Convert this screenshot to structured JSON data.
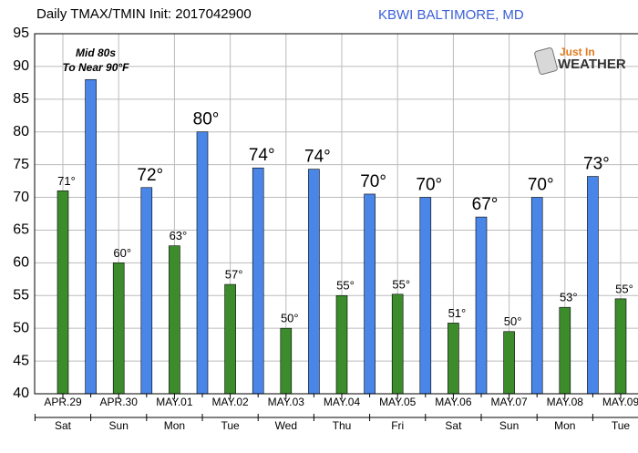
{
  "chart_data": {
    "type": "bar",
    "title": "Daily TMAX/TMIN Init: 2017042900",
    "station": "KBWI BALTIMORE, MD",
    "annotation": [
      "Mid 80s",
      "To Near 90°F"
    ],
    "logo": [
      "Just In",
      "WEATHER"
    ],
    "categories": [
      "APR.29",
      "APR.30",
      "MAY.01",
      "MAY.02",
      "MAY.03",
      "MAY.04",
      "MAY.05",
      "MAY.06",
      "MAY.07",
      "MAY.08",
      "MAY.09"
    ],
    "weekdays": [
      "Sat",
      "Sun",
      "Mon",
      "Tue",
      "Wed",
      "Thu",
      "Fri",
      "Sat",
      "Sun",
      "Mon",
      "Tue"
    ],
    "series": [
      {
        "name": "TMIN",
        "color": "#3c8c2c",
        "values": [
          71,
          60,
          62.6,
          56.7,
          50,
          55,
          55.2,
          50.8,
          49.5,
          53.2,
          54.5
        ],
        "value_labels": [
          "71°",
          "60°",
          "63°",
          "57°",
          "50°",
          "55°",
          "55°",
          "51°",
          "50°",
          "53°",
          "55°"
        ]
      },
      {
        "name": "TMAX",
        "color": "#4a86e8",
        "values": [
          88,
          71.5,
          80,
          74.5,
          74.3,
          70.5,
          70,
          67,
          70,
          73.2,
          null
        ],
        "value_labels": [
          null,
          "72°",
          "80°",
          "74°",
          "74°",
          "70°",
          "70°",
          "67°",
          "70°",
          "73°",
          null
        ]
      }
    ],
    "ylim": [
      40,
      95
    ],
    "yticks": [
      40,
      45,
      50,
      55,
      60,
      65,
      70,
      75,
      80,
      85,
      90,
      95
    ],
    "grid": true
  }
}
